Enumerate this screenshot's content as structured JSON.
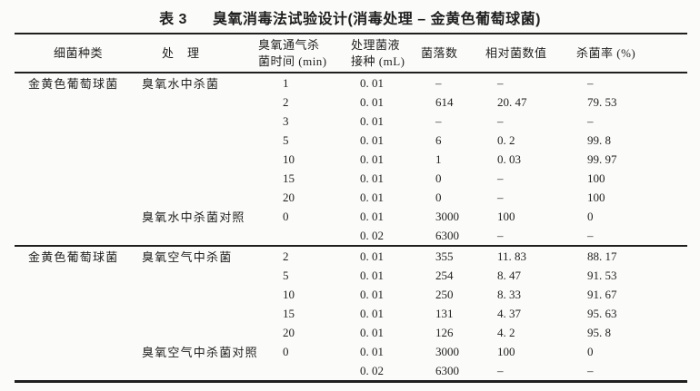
{
  "title": {
    "label": "表 3",
    "text": "臭氧消毒法试验设计(消毒处理 – 金黄色葡萄球菌)"
  },
  "colors": {
    "ink": "#1f1f1f",
    "paper": "#fbfbf9"
  },
  "table": {
    "headers": [
      {
        "id": "species",
        "lines": [
          "细菌种类"
        ]
      },
      {
        "id": "treatment",
        "lines": [
          "处　理"
        ]
      },
      {
        "id": "time",
        "lines": [
          "臭氧通气杀",
          "菌时间 (min)"
        ]
      },
      {
        "id": "inoculation",
        "lines": [
          "处理菌液",
          "接种 (mL)"
        ]
      },
      {
        "id": "colonies",
        "lines": [
          "菌落数"
        ]
      },
      {
        "id": "relative",
        "lines": [
          "相对菌数值"
        ]
      },
      {
        "id": "kill-rate",
        "lines": [
          "杀菌率 (%)"
        ]
      }
    ],
    "sections": [
      {
        "name": "ozone-water",
        "rows": [
          [
            "金黄色葡萄球菌",
            "臭氧水中杀菌",
            "1",
            "0. 01",
            "–",
            "–",
            "–"
          ],
          [
            "",
            "",
            "2",
            "0. 01",
            "614",
            "20. 47",
            "79. 53"
          ],
          [
            "",
            "",
            "3",
            "0. 01",
            "–",
            "–",
            "–"
          ],
          [
            "",
            "",
            "5",
            "0. 01",
            "6",
            "0. 2",
            "99. 8"
          ],
          [
            "",
            "",
            "10",
            "0. 01",
            "1",
            "0. 03",
            "99. 97"
          ],
          [
            "",
            "",
            "15",
            "0. 01",
            "0",
            "–",
            "100"
          ],
          [
            "",
            "",
            "20",
            "0. 01",
            "0",
            "–",
            "100"
          ],
          [
            "",
            "臭氧水中杀菌对照",
            "0",
            "0. 01",
            "3000",
            "100",
            "0"
          ],
          [
            "",
            "",
            "",
            "0. 02",
            "6300",
            "–",
            "–"
          ]
        ]
      },
      {
        "name": "ozone-air",
        "rows": [
          [
            "金黄色葡萄球菌",
            "臭氧空气中杀菌",
            "2",
            "0. 01",
            "355",
            "11. 83",
            "88. 17"
          ],
          [
            "",
            "",
            "5",
            "0. 01",
            "254",
            "8. 47",
            "91. 53"
          ],
          [
            "",
            "",
            "10",
            "0. 01",
            "250",
            "8. 33",
            "91. 67"
          ],
          [
            "",
            "",
            "15",
            "0. 01",
            "131",
            "4. 37",
            "95. 63"
          ],
          [
            "",
            "",
            "20",
            "0. 01",
            "126",
            "4. 2",
            "95. 8"
          ],
          [
            "",
            "臭氧空气中杀菌对照",
            "0",
            "0. 01",
            "3000",
            "100",
            "0"
          ],
          [
            "",
            "",
            "",
            "0. 02",
            "6300",
            "–",
            "–"
          ]
        ]
      }
    ]
  }
}
